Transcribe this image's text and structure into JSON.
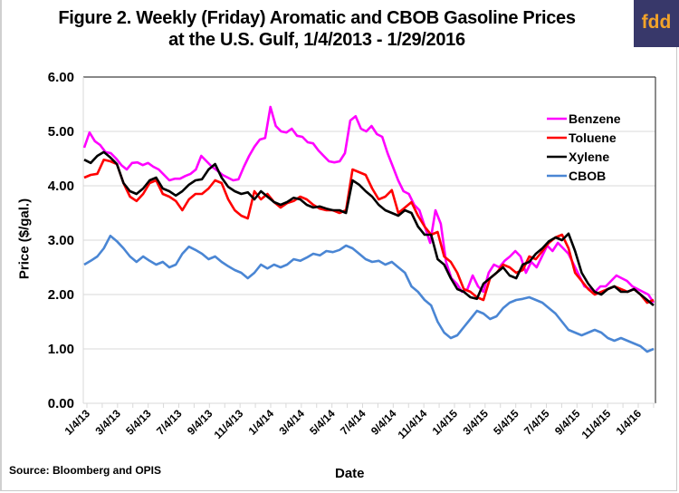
{
  "logo_text": "fdd",
  "chart_data": {
    "type": "line",
    "title": "Figure 2. Weekly (Friday) Aromatic and CBOB Gasoline Prices at the U.S. Gulf, 1/4/2013 - 1/29/2016",
    "title_line1": "Figure 2. Weekly (Friday) Aromatic and CBOB Gasoline Prices",
    "title_line2": "at the U.S. Gulf, 1/4/2013 - 1/29/2016",
    "xlabel": "Date",
    "ylabel": "Price ($/gal.)",
    "source": "Source: Bloomberg and OPIS",
    "ylim": [
      0,
      6
    ],
    "yticks": [
      "0.00",
      "1.00",
      "2.00",
      "3.00",
      "4.00",
      "5.00",
      "6.00"
    ],
    "xticks": [
      "1/4/13",
      "3/4/13",
      "5/4/13",
      "7/4/13",
      "9/4/13",
      "11/4/13",
      "1/4/14",
      "3/4/14",
      "5/4/14",
      "7/4/14",
      "9/4/14",
      "11/4/14",
      "1/4/15",
      "3/4/15",
      "5/4/15",
      "7/4/15",
      "9/4/15",
      "11/4/15",
      "1/4/16"
    ],
    "x_weeks_range": [
      0,
      160
    ],
    "legend_position": "upper-right",
    "grid": "horizontal",
    "series": [
      {
        "name": "Benzene",
        "color": "#ff00ff",
        "values": [
          4.7,
          4.98,
          4.82,
          4.75,
          4.62,
          4.6,
          4.5,
          4.38,
          4.3,
          4.42,
          4.43,
          4.38,
          4.42,
          4.35,
          4.3,
          4.2,
          4.1,
          4.13,
          4.13,
          4.18,
          4.22,
          4.3,
          4.55,
          4.45,
          4.35,
          4.28,
          4.2,
          4.15,
          4.1,
          4.12,
          4.35,
          4.55,
          4.72,
          4.85,
          4.88,
          5.45,
          5.1,
          5.0,
          4.98,
          5.05,
          4.92,
          4.9,
          4.8,
          4.78,
          4.65,
          4.55,
          4.45,
          4.43,
          4.45,
          4.6,
          5.2,
          5.28,
          5.05,
          5.0,
          5.1,
          4.95,
          4.9,
          4.6,
          4.35,
          4.1,
          3.9,
          3.85,
          3.65,
          3.55,
          3.25,
          2.95,
          3.55,
          3.3,
          2.6,
          2.3,
          2.2,
          2.05,
          2.1,
          2.35,
          2.15,
          2.05,
          2.4,
          2.55,
          2.5,
          2.62,
          2.7,
          2.8,
          2.7,
          2.4,
          2.6,
          2.5,
          2.7,
          2.9,
          2.8,
          2.95,
          2.85,
          2.75,
          2.55,
          2.35,
          2.15,
          2.1,
          2.05,
          2.15,
          2.15,
          2.25,
          2.35,
          2.3,
          2.25,
          2.15,
          2.1,
          2.05,
          2.0,
          1.85
        ]
      },
      {
        "name": "Toluene",
        "color": "#ff0000",
        "values": [
          4.15,
          4.2,
          4.22,
          4.48,
          4.45,
          4.4,
          4.05,
          3.8,
          3.72,
          3.85,
          4.05,
          4.1,
          3.85,
          3.8,
          3.72,
          3.55,
          3.75,
          3.85,
          3.85,
          3.95,
          4.1,
          4.05,
          3.75,
          3.55,
          3.45,
          3.4,
          3.9,
          3.75,
          3.85,
          3.7,
          3.6,
          3.68,
          3.72,
          3.8,
          3.75,
          3.65,
          3.58,
          3.55,
          3.55,
          3.5,
          3.55,
          4.3,
          4.25,
          4.2,
          3.95,
          3.75,
          3.8,
          3.92,
          3.5,
          3.6,
          3.7,
          3.45,
          3.25,
          3.1,
          3.15,
          2.7,
          2.6,
          2.4,
          2.1,
          2.05,
          1.95,
          1.9,
          2.3,
          2.4,
          2.55,
          2.5,
          2.4,
          2.45,
          2.7,
          2.65,
          2.8,
          2.95,
          3.05,
          3.1,
          2.85,
          2.4,
          2.25,
          2.1,
          2.0,
          2.05,
          2.1,
          2.15,
          2.1,
          2.05,
          2.1,
          2.0,
          1.85,
          1.9
        ]
      },
      {
        "name": "Xylene",
        "color": "#000000",
        "values": [
          4.48,
          4.42,
          4.55,
          4.62,
          4.52,
          4.4,
          4.05,
          3.9,
          3.85,
          3.95,
          4.1,
          4.15,
          3.95,
          3.9,
          3.82,
          3.9,
          4.02,
          4.1,
          4.12,
          4.3,
          4.4,
          4.15,
          3.98,
          3.9,
          3.85,
          3.88,
          3.75,
          3.9,
          3.8,
          3.7,
          3.65,
          3.7,
          3.78,
          3.75,
          3.65,
          3.6,
          3.62,
          3.58,
          3.55,
          3.55,
          3.5,
          4.1,
          4.02,
          3.9,
          3.8,
          3.65,
          3.55,
          3.5,
          3.45,
          3.55,
          3.5,
          3.25,
          3.1,
          3.1,
          2.65,
          2.55,
          2.3,
          2.1,
          2.05,
          1.95,
          1.92,
          2.2,
          2.3,
          2.4,
          2.5,
          2.35,
          2.3,
          2.55,
          2.6,
          2.75,
          2.85,
          2.98,
          3.05,
          3.0,
          3.12,
          2.8,
          2.4,
          2.2,
          2.05,
          2.0,
          2.1,
          2.15,
          2.05,
          2.05,
          2.1,
          2.0,
          1.9,
          1.8
        ]
      },
      {
        "name": "CBOB",
        "color": "#4a86d4",
        "values": [
          2.55,
          2.62,
          2.7,
          2.85,
          3.08,
          2.98,
          2.85,
          2.7,
          2.6,
          2.7,
          2.62,
          2.55,
          2.6,
          2.5,
          2.55,
          2.75,
          2.88,
          2.82,
          2.75,
          2.65,
          2.7,
          2.6,
          2.52,
          2.45,
          2.4,
          2.3,
          2.4,
          2.55,
          2.48,
          2.55,
          2.5,
          2.55,
          2.65,
          2.62,
          2.68,
          2.75,
          2.72,
          2.8,
          2.78,
          2.82,
          2.9,
          2.85,
          2.75,
          2.65,
          2.6,
          2.62,
          2.55,
          2.6,
          2.5,
          2.4,
          2.15,
          2.05,
          1.9,
          1.8,
          1.5,
          1.3,
          1.2,
          1.25,
          1.4,
          1.55,
          1.7,
          1.65,
          1.55,
          1.6,
          1.75,
          1.85,
          1.9,
          1.92,
          1.95,
          1.9,
          1.85,
          1.75,
          1.65,
          1.5,
          1.35,
          1.3,
          1.25,
          1.3,
          1.35,
          1.3,
          1.2,
          1.15,
          1.2,
          1.15,
          1.1,
          1.05,
          0.95,
          1.0
        ]
      }
    ]
  }
}
